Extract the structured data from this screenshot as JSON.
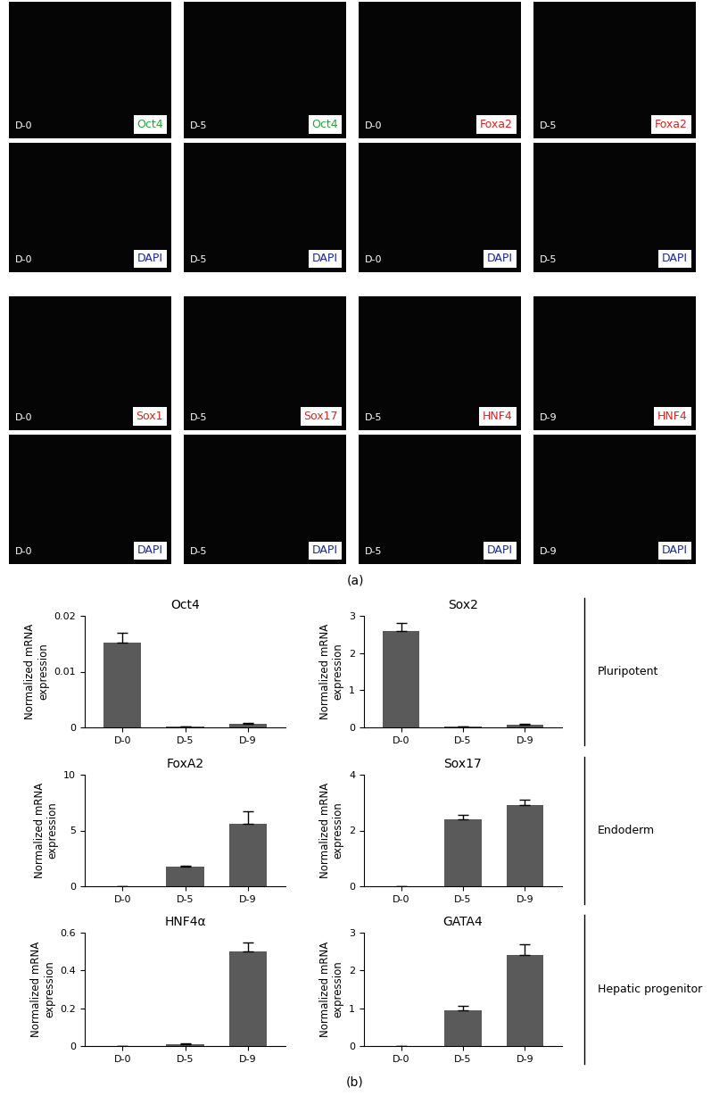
{
  "panel_a": {
    "label": "(a)",
    "blocks": [
      [
        [
          {
            "day": "D-0",
            "stain": "Oct4",
            "color": "#2ea043"
          },
          {
            "day": "D-5",
            "stain": "Oct4",
            "color": "#2ea043"
          },
          {
            "day": "D-0",
            "stain": "Foxa2",
            "color": "#e02020"
          },
          {
            "day": "D-5",
            "stain": "Foxa2",
            "color": "#e02020"
          }
        ],
        [
          {
            "day": "D-0",
            "stain": "DAPI",
            "color": "#1a2a8a"
          },
          {
            "day": "D-5",
            "stain": "DAPI",
            "color": "#1a2a8a"
          },
          {
            "day": "D-0",
            "stain": "DAPI",
            "color": "#1a2a8a"
          },
          {
            "day": "D-5",
            "stain": "DAPI",
            "color": "#1a2a8a"
          }
        ]
      ],
      [
        [
          {
            "day": "D-0",
            "stain": "Sox1",
            "color": "#e02020"
          },
          {
            "day": "D-5",
            "stain": "Sox17",
            "color": "#e02020"
          },
          {
            "day": "D-5",
            "stain": "HNF4",
            "color": "#e02020"
          },
          {
            "day": "D-9",
            "stain": "HNF4",
            "color": "#e02020"
          }
        ],
        [
          {
            "day": "D-0",
            "stain": "DAPI",
            "color": "#1a2a8a"
          },
          {
            "day": "D-5",
            "stain": "DAPI",
            "color": "#1a2a8a"
          },
          {
            "day": "D-5",
            "stain": "DAPI",
            "color": "#1a2a8a"
          },
          {
            "day": "D-9",
            "stain": "DAPI",
            "color": "#1a2a8a"
          }
        ]
      ]
    ]
  },
  "panel_b": {
    "label": "(b)",
    "groups": [
      "Pluripotent",
      "Endoderm",
      "Hepatic progenitor"
    ]
  },
  "chart_data": [
    {
      "type": "bar",
      "title": "Oct4",
      "y_label": "Normalized mRNA\nexpression",
      "categories": [
        "D-0",
        "D-5",
        "D-9"
      ],
      "values": [
        0.0152,
        0.0001,
        0.0006
      ],
      "errors": [
        0.0018,
        5e-05,
        0.0002
      ],
      "color": "#5a5a5a",
      "ylim": [
        0,
        0.02
      ],
      "yticks": [
        0,
        0.01,
        0.02
      ]
    },
    {
      "type": "bar",
      "title": "Sox2",
      "y_label": "Normalized mRNA\nexpression",
      "categories": [
        "D-0",
        "D-5",
        "D-9"
      ],
      "values": [
        2.6,
        0.02,
        0.08
      ],
      "errors": [
        0.22,
        0.005,
        0.02
      ],
      "color": "#5a5a5a",
      "ylim": [
        0,
        3
      ],
      "yticks": [
        0,
        1,
        2,
        3
      ]
    },
    {
      "type": "bar",
      "title": "FoxA2",
      "y_label": "Normalized mRNA\nexpression",
      "categories": [
        "D-0",
        "D-5",
        "D-9"
      ],
      "values": [
        0.02,
        1.75,
        5.6
      ],
      "errors": [
        0.005,
        0.12,
        1.1
      ],
      "color": "#5a5a5a",
      "ylim": [
        0,
        10
      ],
      "yticks": [
        0,
        5,
        10
      ]
    },
    {
      "type": "bar",
      "title": "Sox17",
      "y_label": "Normalized mRNA\nexpression",
      "categories": [
        "D-0",
        "D-5",
        "D-9"
      ],
      "values": [
        0.01,
        2.4,
        2.9
      ],
      "errors": [
        0.005,
        0.15,
        0.22
      ],
      "color": "#5a5a5a",
      "ylim": [
        0,
        4
      ],
      "yticks": [
        0,
        2,
        4
      ]
    },
    {
      "type": "bar",
      "title": "HNF4α",
      "y_label": "Normalized mRNA\nexpression",
      "categories": [
        "D-0",
        "D-5",
        "D-9"
      ],
      "values": [
        0.001,
        0.01,
        0.5
      ],
      "errors": [
        0.0005,
        0.005,
        0.05
      ],
      "color": "#5a5a5a",
      "ylim": [
        0,
        0.6
      ],
      "yticks": [
        0,
        0.2,
        0.4,
        0.6
      ]
    },
    {
      "type": "bar",
      "title": "GATA4",
      "y_label": "Normalized mRNA\nexpression",
      "categories": [
        "D-0",
        "D-5",
        "D-9"
      ],
      "values": [
        0.005,
        0.95,
        2.42
      ],
      "errors": [
        0.002,
        0.12,
        0.27
      ],
      "color": "#5a5a5a",
      "ylim": [
        0,
        3
      ],
      "yticks": [
        0,
        1,
        2,
        3
      ]
    }
  ]
}
